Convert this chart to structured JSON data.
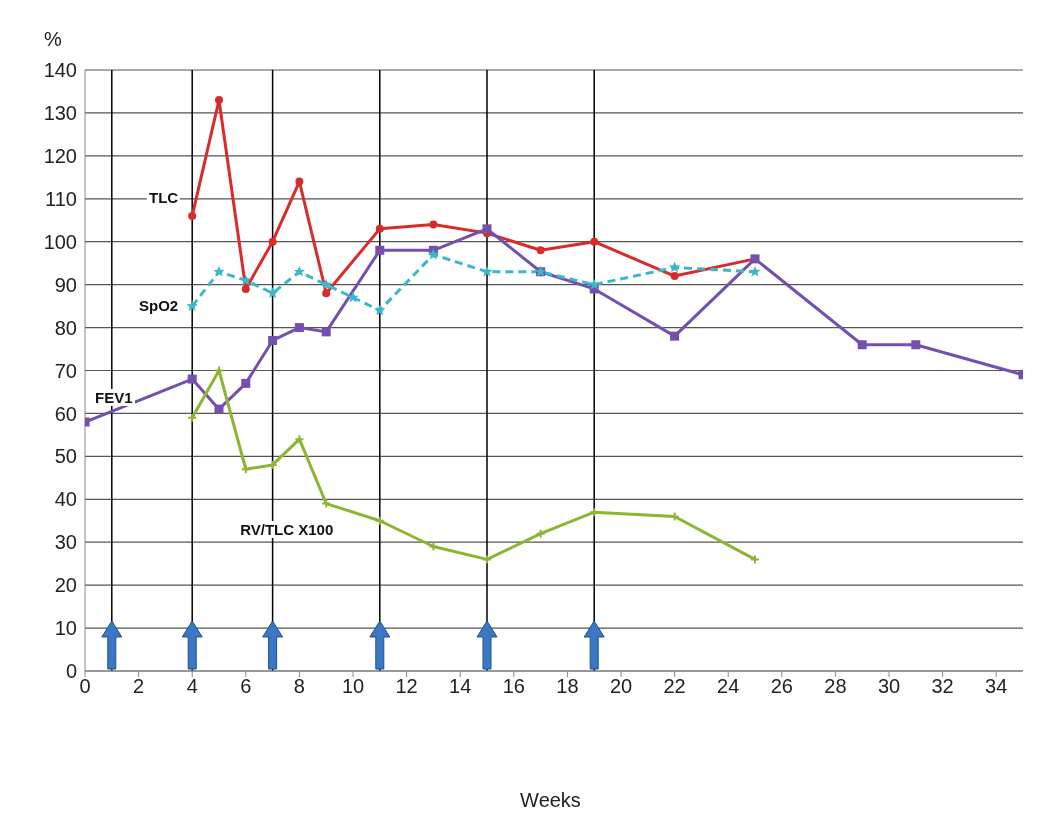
{
  "chart_data": {
    "type": "line",
    "xlabel": "Weeks",
    "ylabel": "%",
    "xlim": [
      0,
      35
    ],
    "xticks": [
      0,
      2,
      4,
      6,
      8,
      10,
      12,
      14,
      16,
      18,
      20,
      22,
      24,
      26,
      28,
      30,
      32,
      34
    ],
    "ylim": [
      0,
      140
    ],
    "yticks": [
      0,
      10,
      20,
      30,
      40,
      50,
      60,
      70,
      80,
      90,
      100,
      110,
      120,
      130,
      140
    ],
    "grid": "y",
    "legend": false,
    "series": [
      {
        "name": "TLC",
        "color": "#d92b2b",
        "marker": "circle",
        "line_style": "solid",
        "x": [
          4,
          5,
          6,
          7,
          8,
          9,
          11,
          13,
          15,
          17,
          19,
          22,
          25
        ],
        "values": [
          106,
          133,
          89,
          100,
          114,
          88,
          103,
          104,
          102,
          98,
          100,
          92,
          96
        ]
      },
      {
        "name": "SpO2",
        "color": "#3bb8c8",
        "marker": "star",
        "line_style": "dashed",
        "x": [
          4,
          5,
          6,
          7,
          8,
          9,
          10,
          11,
          13,
          15,
          17,
          19,
          22,
          25
        ],
        "values": [
          85,
          93,
          91,
          88,
          93,
          90,
          87,
          84,
          97,
          93,
          93,
          90,
          94,
          93
        ]
      },
      {
        "name": "FEV1",
        "color": "#7350b0",
        "marker": "square",
        "line_style": "solid",
        "x": [
          0,
          4,
          5,
          6,
          7,
          8,
          9,
          11,
          13,
          15,
          17,
          19,
          22,
          25,
          29,
          31,
          35
        ],
        "values": [
          58,
          68,
          61,
          67,
          77,
          80,
          79,
          98,
          98,
          103,
          93,
          89,
          78,
          96,
          76,
          76,
          69
        ]
      },
      {
        "name": "RV/TLC X100",
        "color": "#8db534",
        "marker": "cross",
        "line_style": "solid",
        "x": [
          4,
          5,
          6,
          7,
          8,
          9,
          11,
          13,
          15,
          17,
          19,
          22,
          25
        ],
        "values": [
          59,
          70,
          47,
          48,
          54,
          39,
          35,
          29,
          26,
          32,
          37,
          36,
          26
        ]
      }
    ],
    "ref_lines": [
      {
        "axis": "x",
        "value": 1,
        "color": "#000000"
      },
      {
        "axis": "x",
        "value": 4,
        "color": "#000000"
      },
      {
        "axis": "x",
        "value": 7,
        "color": "#000000"
      },
      {
        "axis": "x",
        "value": 11,
        "color": "#000000"
      },
      {
        "axis": "x",
        "value": 15,
        "color": "#000000"
      },
      {
        "axis": "x",
        "value": 19,
        "color": "#000000"
      }
    ]
  }
}
